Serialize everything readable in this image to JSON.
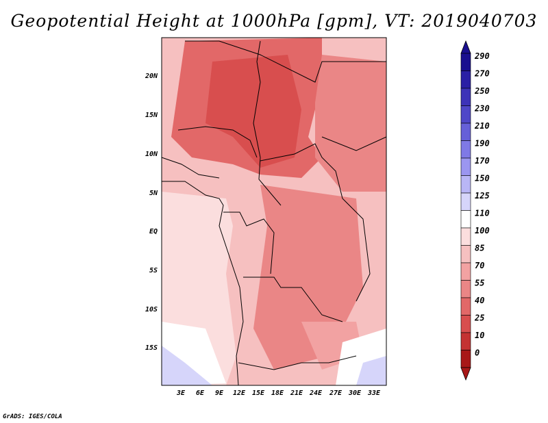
{
  "title": "Geopotential Height at 1000hPa [gpm], VT: 2019040703",
  "credit": "GrADS: IGES/COLA",
  "map": {
    "lat_labels": [
      "20N",
      "15N",
      "10N",
      "5N",
      "EQ",
      "5S",
      "10S",
      "15S"
    ],
    "lon_labels": [
      "3E",
      "6E",
      "9E",
      "12E",
      "15E",
      "18E",
      "21E",
      "24E",
      "27E",
      "30E",
      "33E"
    ]
  },
  "colorbar": {
    "labels": [
      "290",
      "270",
      "250",
      "230",
      "210",
      "190",
      "170",
      "150",
      "125",
      "110",
      "100",
      "85",
      "70",
      "55",
      "40",
      "25",
      "10",
      "0"
    ],
    "colors": [
      "#1a0f8f",
      "#2a1fa5",
      "#3d33b8",
      "#4f47c8",
      "#6660d8",
      "#7f79e6",
      "#9b96f0",
      "#b9b6f6",
      "#d6d5fa",
      "#ffffff",
      "#fbdede",
      "#f6c0c0",
      "#f2a2a2",
      "#ea8686",
      "#e26868",
      "#d84e4e",
      "#c43232",
      "#a81818"
    ]
  }
}
